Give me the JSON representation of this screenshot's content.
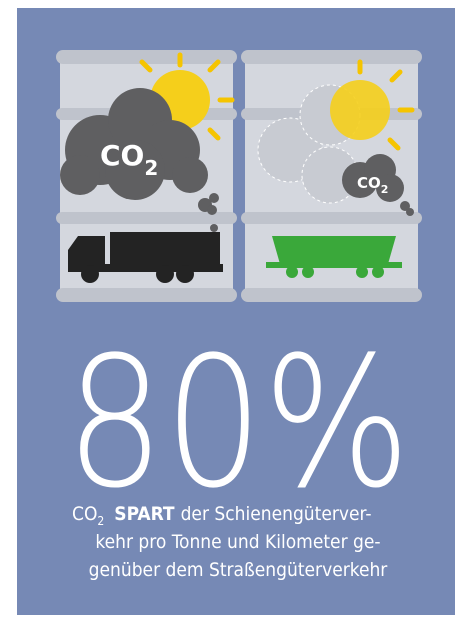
{
  "left_panel": {
    "label": "CO",
    "subscript": "2"
  },
  "right_panel": {
    "label": "CO",
    "subscript": "2"
  },
  "headline": "80%",
  "caption": {
    "prefix": "CO",
    "subscript": "2",
    "emphasis": "SPART",
    "lines": [
      "der Schienengüterver-",
      "kehr pro Tonne und Kilometer ge-",
      "genüber dem Straßengüterverkehr"
    ]
  }
}
